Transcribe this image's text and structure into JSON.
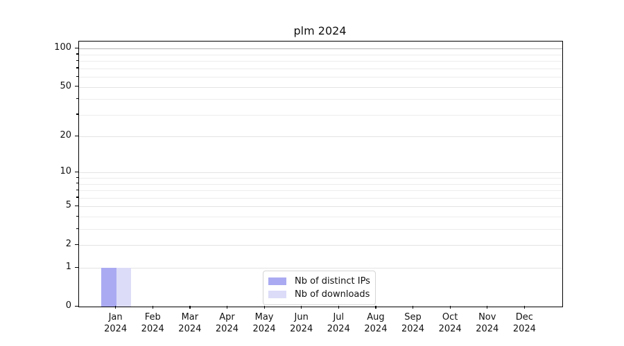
{
  "chart_data": {
    "type": "bar",
    "title": "plm 2024",
    "categories": [
      "Jan 2024",
      "Feb 2024",
      "Mar 2024",
      "Apr 2024",
      "May 2024",
      "Jun 2024",
      "Jul 2024",
      "Aug 2024",
      "Sep 2024",
      "Oct 2024",
      "Nov 2024",
      "Dec 2024"
    ],
    "series": [
      {
        "name": "Nb of distinct IPs",
        "color": "#aaaaf2",
        "values": [
          1,
          0,
          0,
          0,
          0,
          0,
          0,
          0,
          0,
          0,
          0,
          0
        ]
      },
      {
        "name": "Nb of downloads",
        "color": "#dcdcf8",
        "values": [
          1,
          0,
          0,
          0,
          0,
          0,
          0,
          0,
          0,
          0,
          0,
          0
        ]
      }
    ],
    "yticks": [
      0,
      1,
      2,
      5,
      10,
      20,
      50,
      100
    ],
    "minor_gridlines": [
      3,
      4,
      6,
      7,
      8,
      9,
      30,
      40,
      60,
      70,
      80,
      90
    ],
    "y_scale": "log1p",
    "y_max": 114,
    "ylim": [
      0,
      114
    ],
    "grid": "on",
    "emphasis_gridline": 100,
    "legend_position": "lower center",
    "xlabel": "",
    "ylabel": ""
  },
  "colors": {
    "grid_minor": "#ececec",
    "grid_major": "#e3e3e3",
    "grid_emphasis": "#b5b5b5",
    "axis": "#000000"
  }
}
